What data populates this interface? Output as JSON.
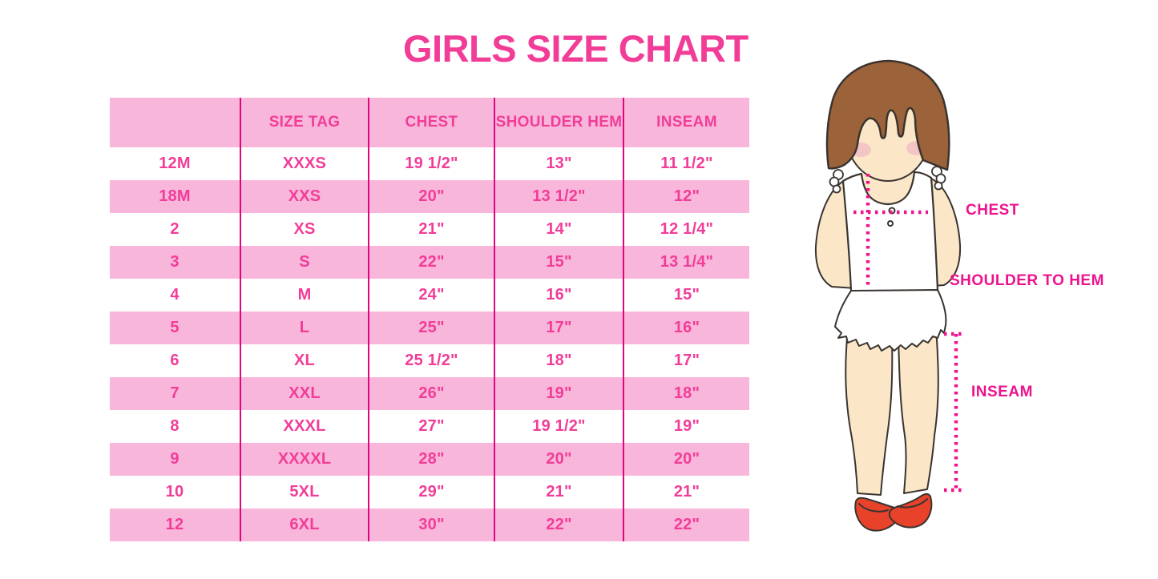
{
  "title": "GIRLS SIZE CHART",
  "table": {
    "columns": [
      "",
      "SIZE TAG",
      "CHEST",
      "SHOULDER HEM",
      "INSEAM"
    ],
    "rows": [
      [
        "12M",
        "XXXS",
        "19 1/2\"",
        "13\"",
        "11 1/2\""
      ],
      [
        "18M",
        "XXS",
        "20\"",
        "13 1/2\"",
        "12\""
      ],
      [
        "2",
        "XS",
        "21\"",
        "14\"",
        "12 1/4\""
      ],
      [
        "3",
        "S",
        "22\"",
        "15\"",
        "13 1/4\""
      ],
      [
        "4",
        "M",
        "24\"",
        "16\"",
        "15\""
      ],
      [
        "5",
        "L",
        "25\"",
        "17\"",
        "16\""
      ],
      [
        "6",
        "XL",
        "25 1/2\"",
        "18\"",
        "17\""
      ],
      [
        "7",
        "XXL",
        "26\"",
        "19\"",
        "18\""
      ],
      [
        "8",
        "XXXL",
        "27\"",
        "19 1/2\"",
        "19\""
      ],
      [
        "9",
        "XXXXL",
        "28\"",
        "20\"",
        "20\""
      ],
      [
        "10",
        "5XL",
        "29\"",
        "21\"",
        "21\""
      ],
      [
        "12",
        "6XL",
        "30\"",
        "22\"",
        "22\""
      ]
    ]
  },
  "diagram": {
    "labels": {
      "chest": "CHEST",
      "shoulder_to_hem": "SHOULDER TO HEM",
      "inseam": "INSEAM"
    }
  },
  "colors": {
    "title_pink": "#F13D98",
    "row_light_pink": "#F9B6DB",
    "table_line_magenta": "#E3057F",
    "label_magenta": "#ED128D",
    "hair_brown": "#9C6239",
    "skin": "#FBE7C8",
    "shoe_red": "#E8422B"
  }
}
